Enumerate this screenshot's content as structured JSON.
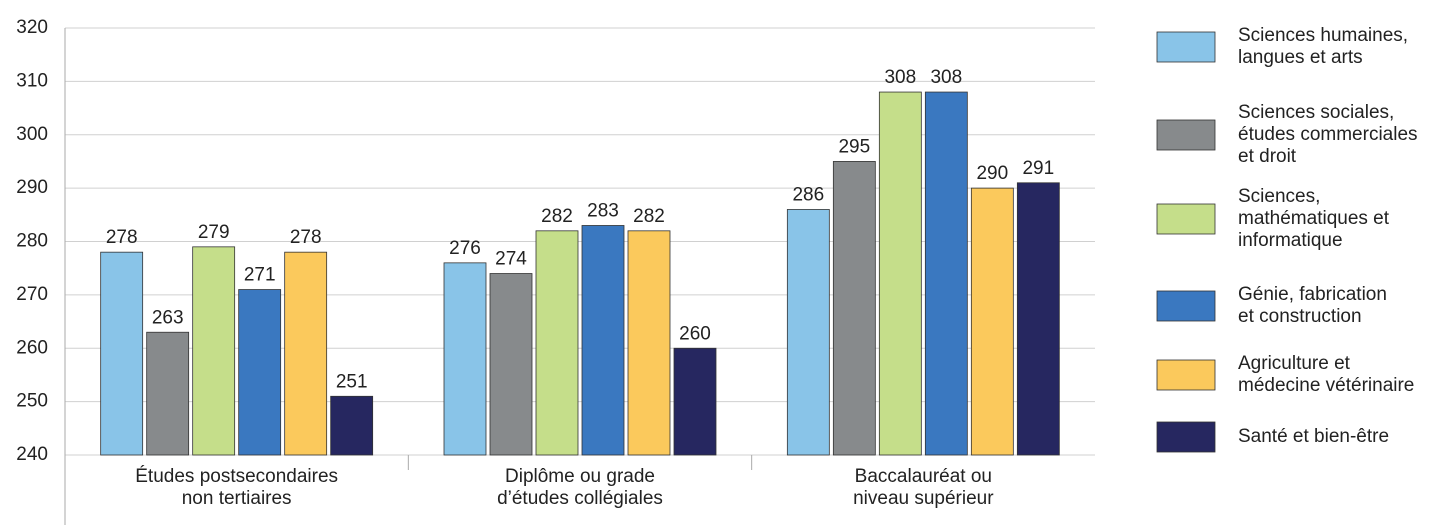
{
  "chart_data": {
    "type": "bar",
    "categories": [
      "Études postsecondaires\nnon tertiaires",
      "Diplôme ou grade\nd’études collégiales",
      "Baccalauréat ou\nniveau supérieur"
    ],
    "series": [
      {
        "name": "Sciences humaines,\nlangues et arts",
        "color": "#89c4e8",
        "values": [
          278,
          276,
          286
        ]
      },
      {
        "name": "Sciences sociales,\nétudes commerciales\net droit",
        "color": "#878a8c",
        "values": [
          263,
          274,
          295
        ]
      },
      {
        "name": "Sciences,\nmathématiques et\ninformatique",
        "color": "#c5de8a",
        "values": [
          279,
          282,
          308
        ]
      },
      {
        "name": "Génie, fabrication\net construction",
        "color": "#3a78c0",
        "values": [
          271,
          283,
          308
        ]
      },
      {
        "name": "Agriculture et\nmédecine vétérinaire",
        "color": "#fbc95c",
        "values": [
          278,
          282,
          290
        ]
      },
      {
        "name": "Santé et bien-être",
        "color": "#262760",
        "values": [
          251,
          260,
          291
        ]
      }
    ],
    "ylim": [
      240,
      320
    ],
    "yticks": [
      240,
      250,
      260,
      270,
      280,
      290,
      300,
      310,
      320
    ],
    "grid": true,
    "legend": "right"
  }
}
